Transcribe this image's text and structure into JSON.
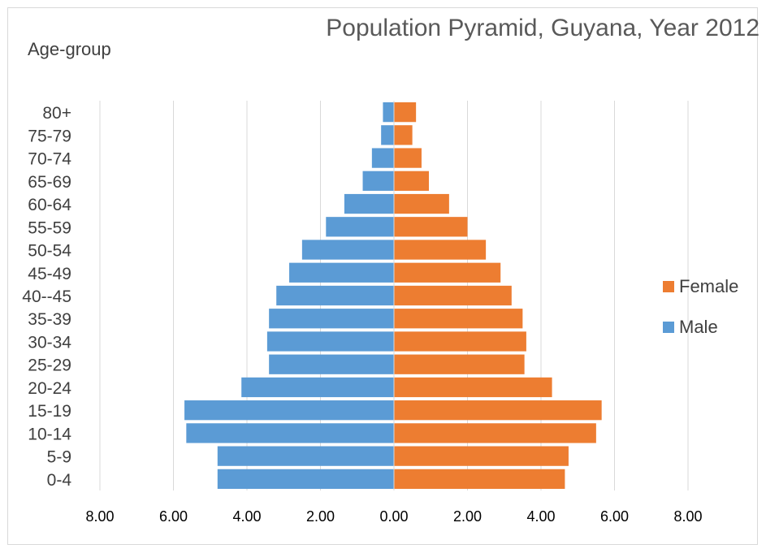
{
  "chart_data": {
    "type": "bar",
    "orientation": "horizontal",
    "title": "Population Pyramid, Guyana, Year 2012",
    "ylabel": "Age-group",
    "xlabel": "",
    "xlim": [
      -8,
      8
    ],
    "x_ticks": [
      "8.00",
      "6.00",
      "4.00",
      "2.00",
      "0.00",
      "2.00",
      "4.00",
      "6.00",
      "8.00"
    ],
    "grid": true,
    "legend_position": "right",
    "categories": [
      "0-4",
      "5-9",
      "10-14",
      "15-19",
      "20-24",
      "25-29",
      "30-34",
      "35-39",
      "40--45",
      "45-49",
      "50-54",
      "55-59",
      "60-64",
      "65-69",
      "70-74",
      "75-79",
      "80+"
    ],
    "series": [
      {
        "name": "Female",
        "color": "#ed7d31",
        "values": [
          4.65,
          4.75,
          5.5,
          5.65,
          4.3,
          3.55,
          3.6,
          3.5,
          3.2,
          2.9,
          2.5,
          2.0,
          1.5,
          0.95,
          0.75,
          0.5,
          0.6
        ]
      },
      {
        "name": "Male",
        "color": "#5b9bd5",
        "values": [
          4.8,
          4.8,
          5.65,
          5.7,
          4.15,
          3.4,
          3.45,
          3.4,
          3.2,
          2.85,
          2.5,
          1.85,
          1.35,
          0.85,
          0.6,
          0.35,
          0.3
        ]
      }
    ]
  }
}
